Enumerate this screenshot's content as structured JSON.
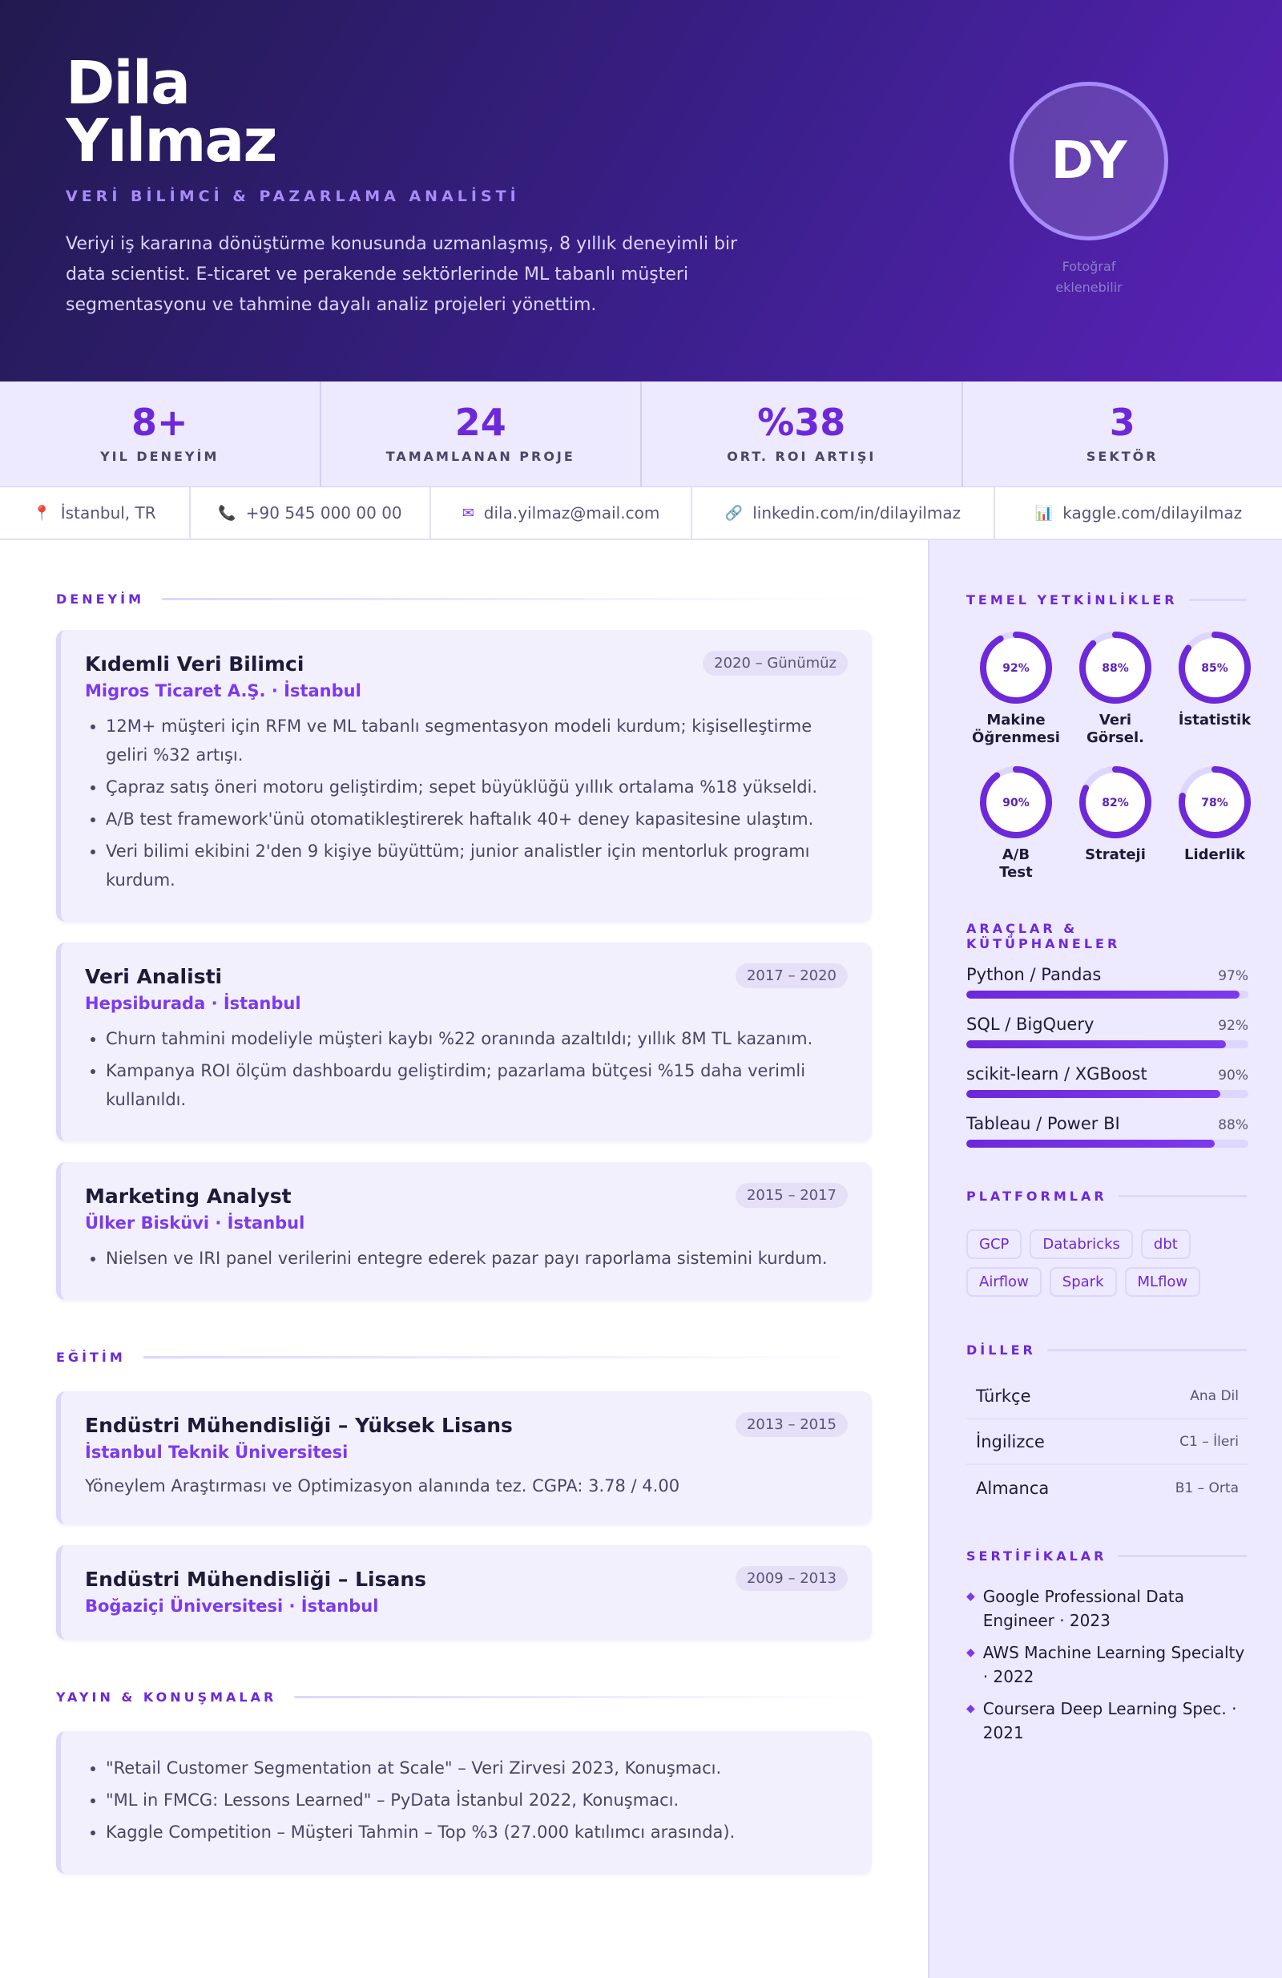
{
  "header": {
    "first_name": "Dila",
    "last_name": "Yılmaz",
    "role": "VERİ BİLİMCİ & PAZARLAMA ANALİSTİ",
    "summary": "Veriyi iş kararına dönüştürme konusunda uzmanlaşmış, 8 yıllık deneyimli bir data scientist. E-ticaret ve perakende sektörlerinde ML tabanlı müşteri segmentasyonu ve tahmine dayalı analiz projeleri yönettim.",
    "initials": "DY",
    "photo_note_line1": "Fotoğraf",
    "photo_note_line2": "eklenebilir"
  },
  "stats": [
    {
      "value": "8+",
      "label": "YIL DENEYİM"
    },
    {
      "value": "24",
      "label": "TAMAMLANAN PROJE"
    },
    {
      "value": "%38",
      "label": "ORT. ROI ARTIŞI"
    },
    {
      "value": "3",
      "label": "SEKTÖR"
    }
  ],
  "contacts": [
    {
      "icon": "pin-icon",
      "glyph": "📍",
      "text": "İstanbul, TR"
    },
    {
      "icon": "phone-icon",
      "glyph": "📞",
      "text": "+90 545 000 00 00"
    },
    {
      "icon": "mail-icon",
      "glyph": "✉",
      "text": "dila.yilmaz@mail.com"
    },
    {
      "icon": "link-icon",
      "glyph": "🔗",
      "text": "linkedin.com/in/dilayilmaz"
    },
    {
      "icon": "chart-icon",
      "glyph": "📊",
      "text": "kaggle.com/dilayilmaz"
    }
  ],
  "sections": {
    "experience": "DENEYİM",
    "education": "EĞİTİM",
    "publications": "YAYIN & KONUŞMALAR"
  },
  "experience": [
    {
      "title": "Kıdemli Veri Bilimci",
      "company": "Migros Ticaret A.Ş. · İstanbul",
      "date": "2020 – Günümüz",
      "bullets": [
        "12M+ müşteri için RFM ve ML tabanlı segmentasyon modeli kurdum; kişiselleştirme geliri %32 artışı.",
        "Çapraz satış öneri motoru geliştirdim; sepet büyüklüğü yıllık ortalama %18 yükseldi.",
        "A/B test framework'ünü otomatikleştirerek haftalık 40+ deney kapasitesine ulaştım.",
        "Veri bilimi ekibini 2'den 9 kişiye büyüttüm; junior analistler için mentorluk programı kurdum."
      ]
    },
    {
      "title": "Veri Analisti",
      "company": "Hepsiburada · İstanbul",
      "date": "2017 – 2020",
      "bullets": [
        "Churn tahmini modeliyle müşteri kaybı %22 oranında azaltıldı; yıllık 8M TL kazanım.",
        "Kampanya ROI ölçüm dashboardu geliştirdim; pazarlama bütçesi %15 daha verimli kullanıldı."
      ]
    },
    {
      "title": "Marketing Analyst",
      "company": "Ülker Bisküvi · İstanbul",
      "date": "2015 – 2017",
      "bullets": [
        "Nielsen ve IRI panel verilerini entegre ederek pazar payı raporlama sistemini kurdum."
      ]
    }
  ],
  "education": [
    {
      "title": "Endüstri Mühendisliği – Yüksek Lisans",
      "school": "İstanbul Teknik Üniversitesi",
      "date": "2013 – 2015",
      "text": "Yöneylem Araştırması ve Optimizasyon alanında tez. CGPA: 3.78 / 4.00"
    },
    {
      "title": "Endüstri Mühendisliği – Lisans",
      "school": "Boğaziçi Üniversitesi · İstanbul",
      "date": "2009 – 2013"
    }
  ],
  "publications": [
    "\"Retail Customer Segmentation at Scale\" – Veri Zirvesi 2023, Konuşmacı.",
    "\"ML in FMCG: Lessons Learned\" – PyData İstanbul 2022, Konuşmacı.",
    "Kaggle Competition – Müşteri Tahmin – Top %3 (27.000 katılımcı arasında)."
  ],
  "sidebar": {
    "competencies_title": "TEMEL YETKİNLİKLER",
    "competencies": [
      {
        "pct_label": "92%",
        "value": 0.92,
        "label_line1": "Makine",
        "label_line2": "Öğrenmesi"
      },
      {
        "pct_label": "88%",
        "value": 0.88,
        "label_line1": "Veri",
        "label_line2": "Görsel."
      },
      {
        "pct_label": "85%",
        "value": 0.85,
        "label_line1": "İstatistik",
        "label_line2": ""
      },
      {
        "pct_label": "90%",
        "value": 0.9,
        "label_line1": "A/B",
        "label_line2": "Test"
      },
      {
        "pct_label": "82%",
        "value": 0.82,
        "label_line1": "Strateji",
        "label_line2": ""
      },
      {
        "pct_label": "78%",
        "value": 0.78,
        "label_line1": "Liderlik",
        "label_line2": ""
      }
    ],
    "tools_title": "ARAÇLAR & KÜTÜPHANELER",
    "tools": [
      {
        "name": "Python / Pandas",
        "pct_label": "97%",
        "value": 0.97
      },
      {
        "name": "SQL / BigQuery",
        "pct_label": "92%",
        "value": 0.92
      },
      {
        "name": "scikit-learn / XGBoost",
        "pct_label": "90%",
        "value": 0.9
      },
      {
        "name": "Tableau / Power BI",
        "pct_label": "88%",
        "value": 0.88
      }
    ],
    "platforms_title": "PLATFORMLAR",
    "platforms": [
      "GCP",
      "Databricks",
      "dbt",
      "Airflow",
      "Spark",
      "MLflow"
    ],
    "languages_title": "DİLLER",
    "languages": [
      {
        "name": "Türkçe",
        "level": "Ana Dil"
      },
      {
        "name": "İngilizce",
        "level": "C1 – İleri"
      },
      {
        "name": "Almanca",
        "level": "B1 – Orta"
      }
    ],
    "certificates_title": "SERTİFİKALAR",
    "certificates": [
      "Google Professional Data Engineer · 2023",
      "AWS Machine Learning Specialty · 2022",
      "Coursera Deep Learning Spec. · 2021"
    ]
  },
  "colors": {
    "accent": "#6d28d9",
    "accent_light": "#ddd6fe",
    "header_start": "#221a4f",
    "header_end": "#5a22b8"
  }
}
